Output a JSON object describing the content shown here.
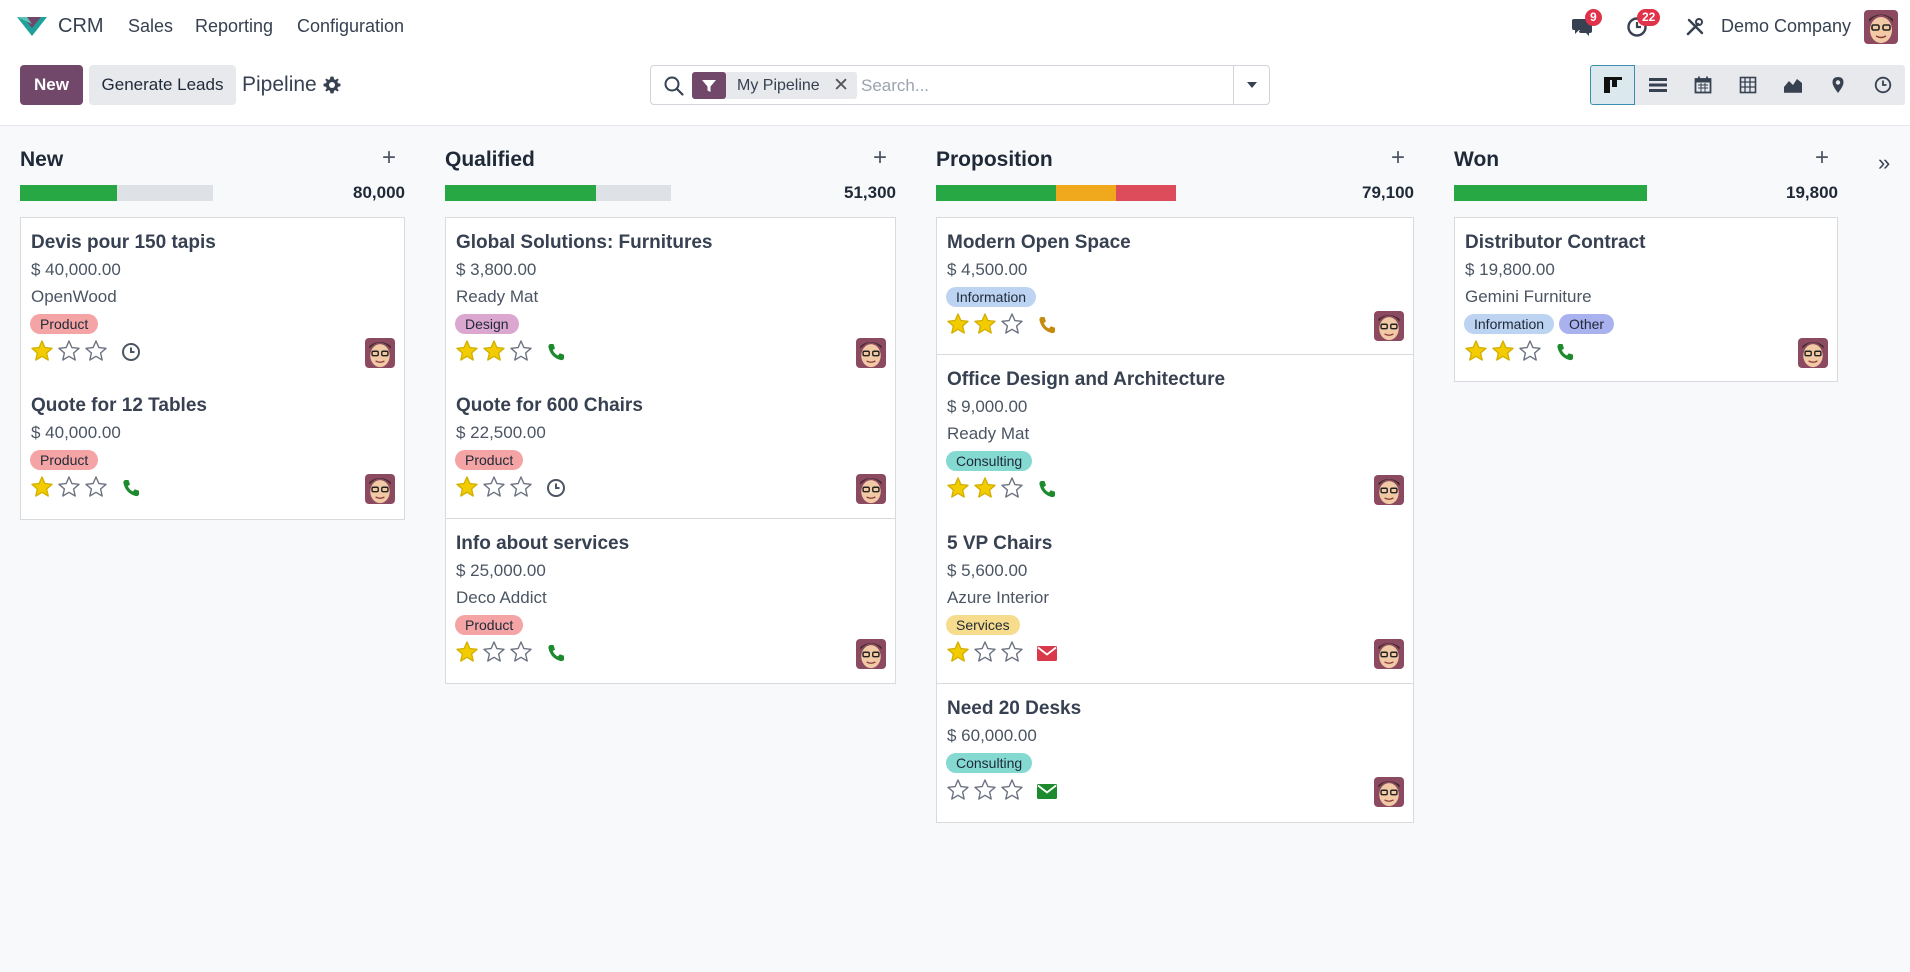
{
  "app": {
    "name": "CRM"
  },
  "menu": [
    "Sales",
    "Reporting",
    "Configuration"
  ],
  "topbar": {
    "messages_count": "9",
    "activities_count": "22",
    "company": "Demo Company"
  },
  "control": {
    "new_label": "New",
    "generate_label": "Generate Leads",
    "title": "Pipeline",
    "facet": "My Pipeline",
    "search_placeholder": "Search..."
  },
  "views": [
    "kanban-view-icon",
    "list-view-icon",
    "calendar-view-icon",
    "pivot-view-icon",
    "graph-view-icon",
    "map-view-icon",
    "activity-view-icon"
  ],
  "colors": {
    "primary": "#71486a",
    "progress_green": "#28a745",
    "progress_orange": "#f0a81c",
    "progress_red": "#dc4c5a",
    "progress_empty": "#dee2e6",
    "star_filled": "#f3cc00",
    "phone_green": "#1e8a2e",
    "phone_orange": "#c78a10",
    "mail_red": "#d9394b",
    "mail_green": "#1e8a2e"
  },
  "tag_colors": {
    "Product": "#f4a4a4",
    "Design": "#dba6cf",
    "Information": "#bcd3f2",
    "Consulting": "#84d9d0",
    "Services": "#f6dc8c",
    "Other": "#a9b2ee"
  },
  "columns": [
    {
      "name": "New",
      "total": "80,000",
      "progress": [
        {
          "color": "green",
          "pct": 50
        },
        {
          "color": "empty",
          "pct": 50
        }
      ],
      "cards": [
        {
          "title": "Devis pour 150 tapis",
          "amount": "$ 40,000.00",
          "company": "OpenWood",
          "tags": [
            "Product"
          ],
          "stars": 1,
          "activity": "clock"
        },
        {
          "title": "Quote for 12 Tables",
          "amount": "$ 40,000.00",
          "company": "",
          "tags": [
            "Product"
          ],
          "stars": 1,
          "activity": "phone-green"
        }
      ]
    },
    {
      "name": "Qualified",
      "total": "51,300",
      "progress": [
        {
          "color": "green",
          "pct": 67
        },
        {
          "color": "empty",
          "pct": 33
        }
      ],
      "cards": [
        {
          "title": "Global Solutions: Furnitures",
          "amount": "$ 3,800.00",
          "company": "Ready Mat",
          "tags": [
            "Design"
          ],
          "stars": 2,
          "activity": "phone-green"
        },
        {
          "title": "Quote for 600 Chairs",
          "amount": "$ 22,500.00",
          "company": "",
          "tags": [
            "Product"
          ],
          "stars": 1,
          "activity": "clock"
        },
        {
          "title": "Info about services",
          "amount": "$ 25,000.00",
          "company": "Deco Addict",
          "tags": [
            "Product"
          ],
          "stars": 1,
          "activity": "phone-green"
        }
      ]
    },
    {
      "name": "Proposition",
      "total": "79,100",
      "progress": [
        {
          "color": "green",
          "pct": 50
        },
        {
          "color": "orange",
          "pct": 25
        },
        {
          "color": "red",
          "pct": 25
        }
      ],
      "cards": [
        {
          "title": "Modern Open Space",
          "amount": "$ 4,500.00",
          "company": "",
          "tags": [
            "Information"
          ],
          "stars": 2,
          "activity": "phone-orange"
        },
        {
          "title": "Office Design and Architecture",
          "amount": "$ 9,000.00",
          "company": "Ready Mat",
          "tags": [
            "Consulting"
          ],
          "stars": 2,
          "activity": "phone-green"
        },
        {
          "title": "5 VP Chairs",
          "amount": "$ 5,600.00",
          "company": "Azure Interior",
          "tags": [
            "Services"
          ],
          "stars": 1,
          "activity": "mail-red"
        },
        {
          "title": "Need 20 Desks",
          "amount": "$ 60,000.00",
          "company": "",
          "tags": [
            "Consulting"
          ],
          "stars": 0,
          "activity": "mail-green"
        }
      ]
    },
    {
      "name": "Won",
      "total": "19,800",
      "progress": [
        {
          "color": "green",
          "pct": 100
        }
      ],
      "cards": [
        {
          "title": "Distributor Contract",
          "amount": "$ 19,800.00",
          "company": "Gemini Furniture",
          "tags": [
            "Information",
            "Other"
          ],
          "stars": 2,
          "activity": "phone-green"
        }
      ]
    }
  ]
}
